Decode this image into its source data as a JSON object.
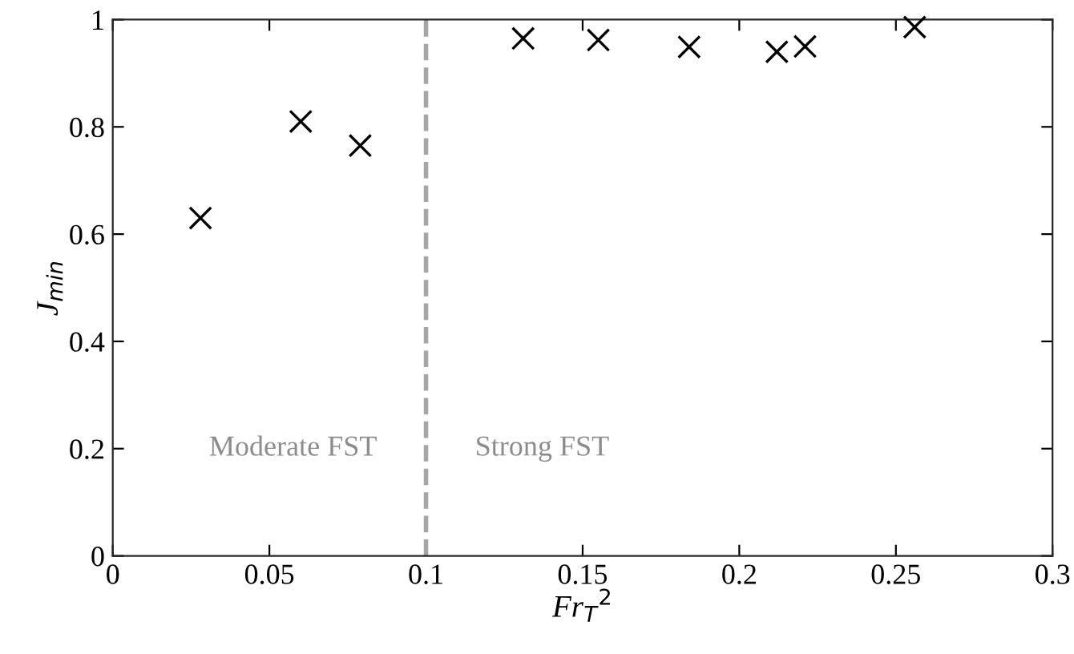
{
  "chart_data": {
    "type": "scatter",
    "xlabel": "Fr$_{T}$$^{2}$",
    "ylabel": "J$_{min}$",
    "x": [
      0.028,
      0.06,
      0.079,
      0.131,
      0.155,
      0.184,
      0.212,
      0.221,
      0.256
    ],
    "series": [
      {
        "color": "#000000",
        "values": [
          0.63,
          0.81,
          0.765,
          0.965,
          0.962,
          0.949,
          0.94,
          0.95,
          0.986
        ]
      }
    ],
    "marker": "cross",
    "xlim": [
      0,
      0.3
    ],
    "ylim": [
      0,
      1
    ],
    "xticks": [
      0,
      0.05,
      0.1,
      0.15,
      0.2,
      0.25,
      0.3
    ],
    "yticks": [
      0,
      0.2,
      0.4,
      0.6,
      0.8,
      1
    ],
    "ref_lines": [
      {
        "axis": "x",
        "value": 0.1,
        "color": "#a6a6a6",
        "line_style": "dashed"
      }
    ],
    "annotations": [
      "Moderate FST",
      "Strong FST"
    ],
    "grid": false
  }
}
